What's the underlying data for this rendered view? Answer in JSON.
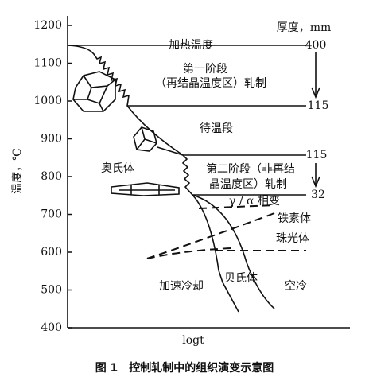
{
  "axis": {
    "ylabel": "温度，℃",
    "ylim": [
      400,
      1200
    ],
    "yticks": [
      400,
      500,
      600,
      700,
      800,
      900,
      1000,
      1100,
      1200
    ],
    "xlabel": "logt"
  },
  "labels": {
    "thickness": "厚度，mm",
    "t400": "400",
    "heating": "加热温度",
    "stage1a": "第一阶段",
    "stage1b": "（再结晶温度区）轧制",
    "t115a": "115",
    "holding": "待温段",
    "t115b": "115",
    "austenite": "奥氏体",
    "stage2a": "第二阶段（非再结",
    "stage2b": "晶温度区）轧制",
    "t32": "32",
    "transform": "γ / α 相变",
    "ferrite": "铁素体",
    "pearlite": "珠光体",
    "bainite": "贝氏体",
    "accel": "加速冷却",
    "air": "空冷"
  },
  "caption": "图 1　控制轧制中的组织演变示意图"
}
